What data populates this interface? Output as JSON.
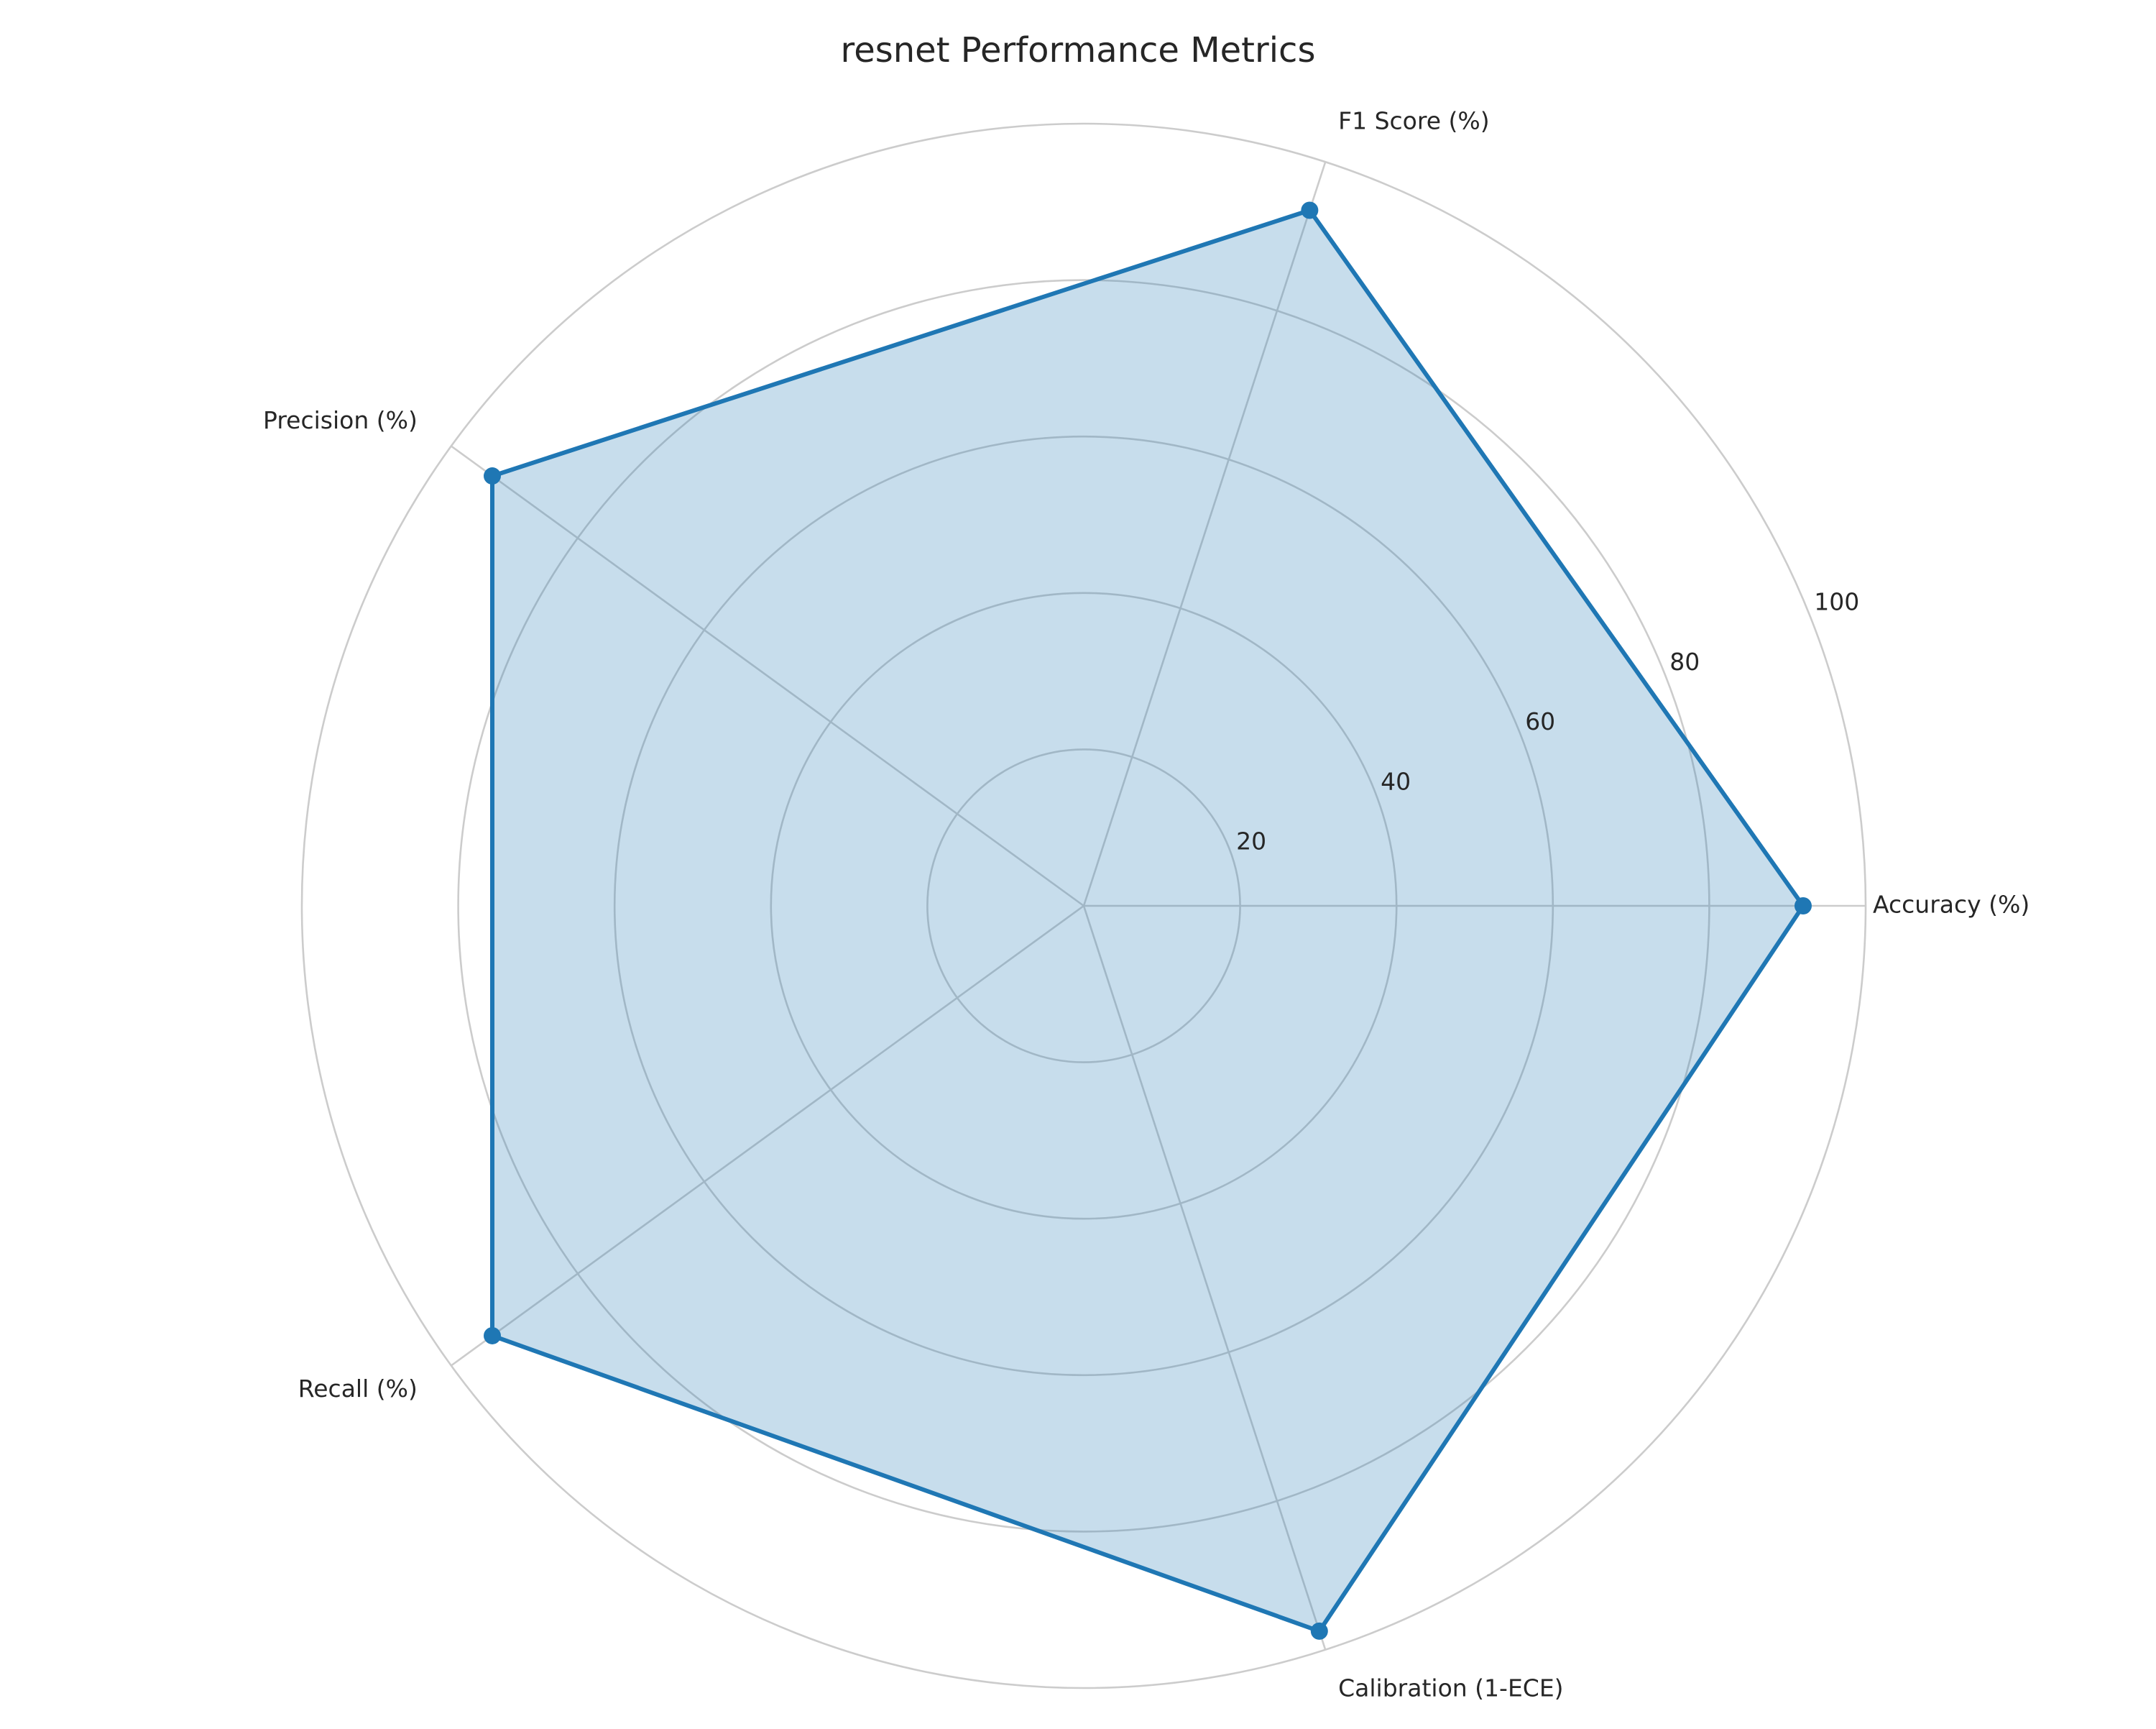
{
  "chart_data": {
    "type": "radar",
    "title": "resnet Performance Metrics",
    "categories": [
      "Accuracy (%)",
      "F1 Score (%)",
      "Precision (%)",
      "Recall (%)",
      "Calibration (1-ECE)"
    ],
    "series": [
      {
        "values": [
          92.0,
          93.5,
          93.5,
          93.5,
          97.5
        ]
      }
    ],
    "rlim": [
      0,
      100
    ],
    "r_ticks": [
      20,
      40,
      60,
      80,
      100
    ],
    "grid": true,
    "colors": {
      "line": "#1f77b4",
      "fill": "#1f77b4",
      "grid": "#cccccc",
      "text": "#262626"
    }
  }
}
